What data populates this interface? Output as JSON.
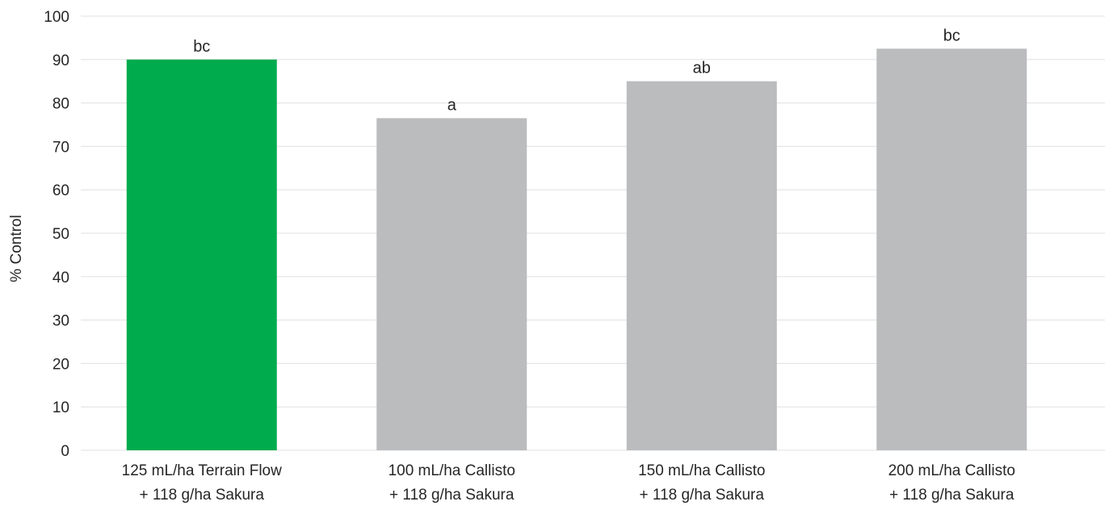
{
  "chart_data": {
    "type": "bar",
    "ylabel": "% Control",
    "ylim": [
      0,
      100
    ],
    "yticks": [
      "0",
      "10",
      "20",
      "30",
      "40",
      "50",
      "60",
      "70",
      "80",
      "90",
      "100"
    ],
    "grid": true,
    "categories": [
      [
        "125 mL/ha Terrain Flow",
        "+ 118 g/ha Sakura"
      ],
      [
        "100 mL/ha Callisto",
        "+ 118 g/ha Sakura"
      ],
      [
        "150 mL/ha Callisto",
        "+ 118 g/ha Sakura"
      ],
      [
        "200 mL/ha Callisto",
        "+ 118 g/ha Sakura"
      ]
    ],
    "values": [
      90,
      76.5,
      85,
      92.5
    ],
    "data_labels": [
      "bc",
      "a",
      "ab",
      "bc"
    ],
    "colors": [
      "#00ab4e",
      "#bbbcbe",
      "#bbbcbe",
      "#bbbcbe"
    ]
  }
}
